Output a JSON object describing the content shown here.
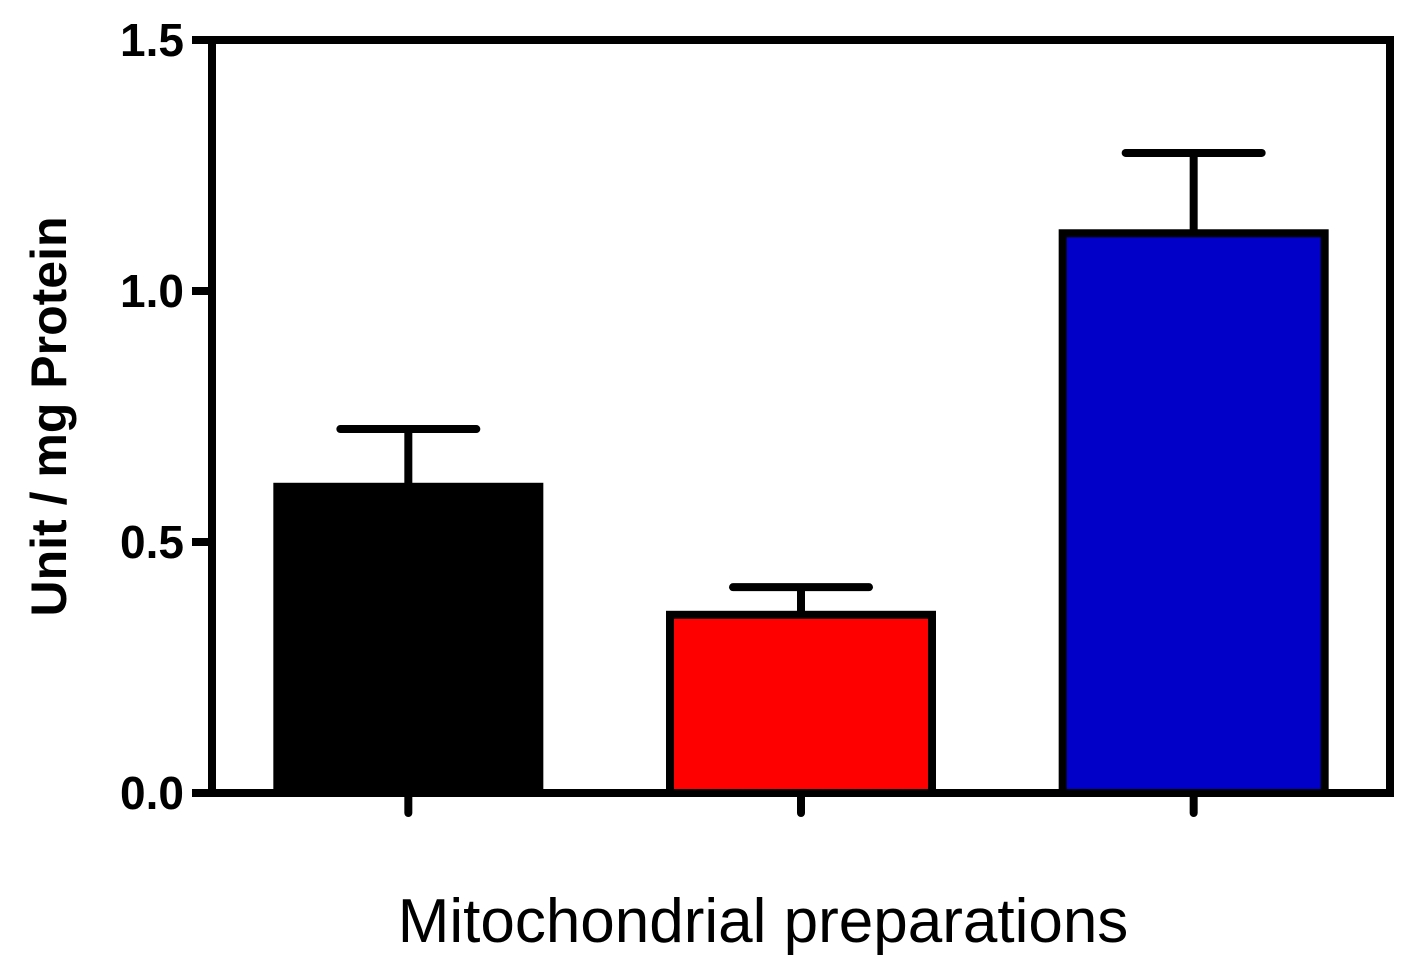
{
  "chart_data": {
    "type": "bar",
    "title": "",
    "xlabel": "Mitochondrial preparations",
    "ylabel": "Unit / mg Protein",
    "ylim": [
      0,
      1.5
    ],
    "yticks": [
      "0.0",
      "0.5",
      "1.0",
      "1.5"
    ],
    "ytick_values": [
      0,
      0.5,
      1.0,
      1.5
    ],
    "categories": [
      "",
      "",
      ""
    ],
    "values": [
      0.61,
      0.355,
      1.115
    ],
    "errors": [
      0.115,
      0.055,
      0.16
    ],
    "colors": [
      "#000000",
      "#ff0000",
      "#0000c8"
    ],
    "grid": false,
    "legend": "none"
  }
}
